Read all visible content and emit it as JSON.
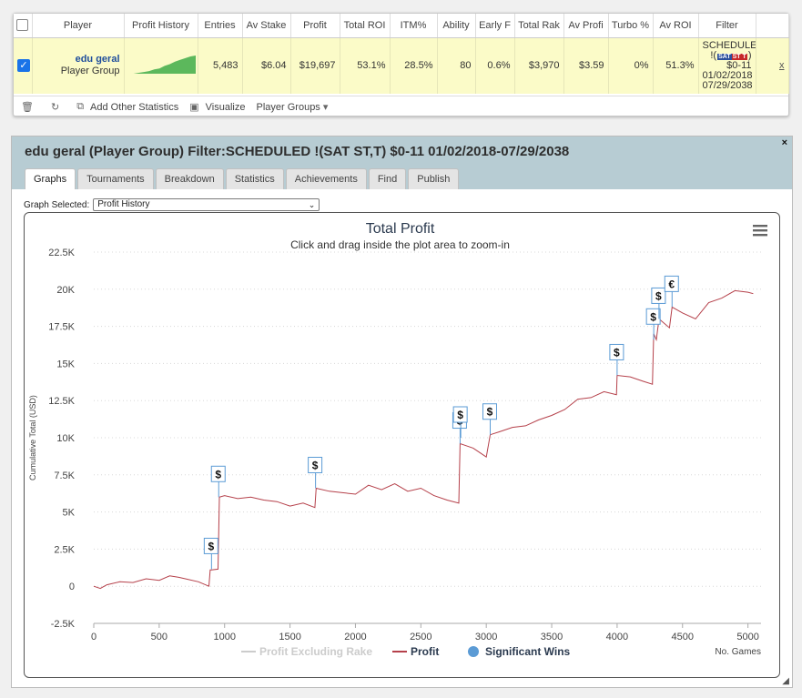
{
  "table": {
    "headers": [
      "Player",
      "Profit History",
      "Entries",
      "Av Stake",
      "Profit",
      "Total ROI",
      "ITM%",
      "Ability",
      "Early F",
      "Total Rak",
      "Av Profi",
      "Turbo %",
      "Av ROI",
      "Filter"
    ],
    "row": {
      "player_name": "edu geral",
      "player_type": "Player Group",
      "entries": "5,483",
      "av_stake": "$6.04",
      "profit": "$19,697",
      "total_roi": "53.1%",
      "itm": "28.5%",
      "ability": "80",
      "early_f": "0.6%",
      "total_rake": "$3,970",
      "av_profit": "$3.59",
      "turbo": "0%",
      "av_roi": "51.3%",
      "filter_line1": "SCHEDULED",
      "filter_prefix": "!(",
      "filter_badge_1": "SAT",
      "filter_badge_2": "ST",
      "filter_badge_3": "T",
      "filter_suffix": ")",
      "filter_line3": "$0-11",
      "filter_line4": "01/02/2018",
      "filter_line5": "07/29/2038",
      "remove": "x"
    }
  },
  "toolbar": {
    "add_stats": "Add Other Statistics",
    "visualize": "Visualize",
    "player_groups": "Player Groups"
  },
  "panel": {
    "title": "edu geral (Player Group) Filter:SCHEDULED !(SAT ST,T) $0-11 01/02/2018-07/29/2038",
    "close": "×",
    "tabs": [
      "Graphs",
      "Tournaments",
      "Breakdown",
      "Statistics",
      "Achievements",
      "Find",
      "Publish"
    ],
    "graph_selected_label": "Graph Selected:",
    "graph_selected_value": "Profit History"
  },
  "icons": {
    "trash": "trash-icon",
    "refresh": "refresh-icon",
    "add": "add-columns-icon",
    "visualize": "image-icon",
    "menu": "hamburger-menu-icon"
  },
  "colors": {
    "profit_line": "#b5404a",
    "excluded_line": "#cccccc",
    "wins": "#5b9bd5",
    "sparkline": "#5cb85c",
    "header_bg": "#b7ccd3",
    "row_bg": "#fbfbc8"
  },
  "chart_data": {
    "type": "line",
    "title": "Total Profit",
    "subtitle": "Click and drag inside the plot area to zoom-in",
    "ylabel": "Cumulative Total (USD)",
    "xlabel": "No. Games",
    "ylim": [
      -2500,
      22500
    ],
    "xlim": [
      0,
      5100
    ],
    "y_ticks": [
      -2500,
      0,
      2500,
      5000,
      7500,
      10000,
      12500,
      15000,
      17500,
      20000,
      22500
    ],
    "y_tick_labels": [
      "-2.5K",
      "0",
      "2.5K",
      "5K",
      "7.5K",
      "10K",
      "12.5K",
      "15K",
      "17.5K",
      "20K",
      "22.5K"
    ],
    "x_ticks": [
      0,
      500,
      1000,
      1500,
      2000,
      2500,
      3000,
      3500,
      4000,
      4500,
      5000
    ],
    "x_tick_labels": [
      "0",
      "500",
      "1000",
      "1500",
      "2000",
      "2500",
      "3000",
      "3500",
      "4000",
      "4500",
      "5000"
    ],
    "grid": true,
    "legend_position": "bottom",
    "legend": [
      "Profit Excluding Rake",
      "Profit",
      "Significant Wins"
    ],
    "series": [
      {
        "name": "Profit",
        "x": [
          0,
          50,
          100,
          200,
          300,
          400,
          500,
          580,
          650,
          700,
          800,
          880,
          890,
          900,
          950,
          960,
          1000,
          1100,
          1200,
          1300,
          1400,
          1500,
          1600,
          1690,
          1700,
          1800,
          1900,
          2000,
          2100,
          2200,
          2300,
          2400,
          2500,
          2600,
          2700,
          2790,
          2800,
          2900,
          2950,
          3000,
          3030,
          3100,
          3200,
          3300,
          3400,
          3500,
          3600,
          3700,
          3800,
          3900,
          3995,
          4000,
          4100,
          4200,
          4270,
          4280,
          4300,
          4320,
          4400,
          4420,
          4500,
          4600,
          4700,
          4800,
          4900,
          5000,
          5040
        ],
        "y": [
          0,
          -150,
          100,
          300,
          250,
          500,
          400,
          700,
          600,
          500,
          300,
          0,
          1100,
          1100,
          1150,
          6000,
          6100,
          5900,
          6000,
          5800,
          5700,
          5400,
          5600,
          5300,
          6600,
          6400,
          6300,
          6200,
          6800,
          6500,
          6900,
          6400,
          6600,
          6100,
          5800,
          5600,
          9600,
          9300,
          9000,
          8700,
          10200,
          10400,
          10700,
          10800,
          11200,
          11500,
          11900,
          12600,
          12700,
          13100,
          12900,
          14200,
          14100,
          13800,
          13600,
          17000,
          16600,
          18000,
          17400,
          18800,
          18400,
          18000,
          19100,
          19400,
          19900,
          19800,
          19700
        ]
      }
    ],
    "significant_wins": [
      {
        "x": 900,
        "y": 1150,
        "label": "$"
      },
      {
        "x": 955,
        "y": 6000,
        "label": "$"
      },
      {
        "x": 1695,
        "y": 6600,
        "label": "$"
      },
      {
        "x": 2800,
        "y": 9600,
        "label": "$"
      },
      {
        "x": 2805,
        "y": 10000,
        "label": "$"
      },
      {
        "x": 3030,
        "y": 10200,
        "label": "$"
      },
      {
        "x": 4000,
        "y": 14200,
        "label": "$"
      },
      {
        "x": 4280,
        "y": 16600,
        "label": "$"
      },
      {
        "x": 4320,
        "y": 18000,
        "label": "$"
      },
      {
        "x": 4420,
        "y": 18800,
        "label": "€"
      }
    ],
    "sparkline": [
      0,
      0,
      1,
      2,
      3,
      5,
      6,
      9,
      11,
      14,
      16,
      18,
      20,
      21
    ]
  }
}
